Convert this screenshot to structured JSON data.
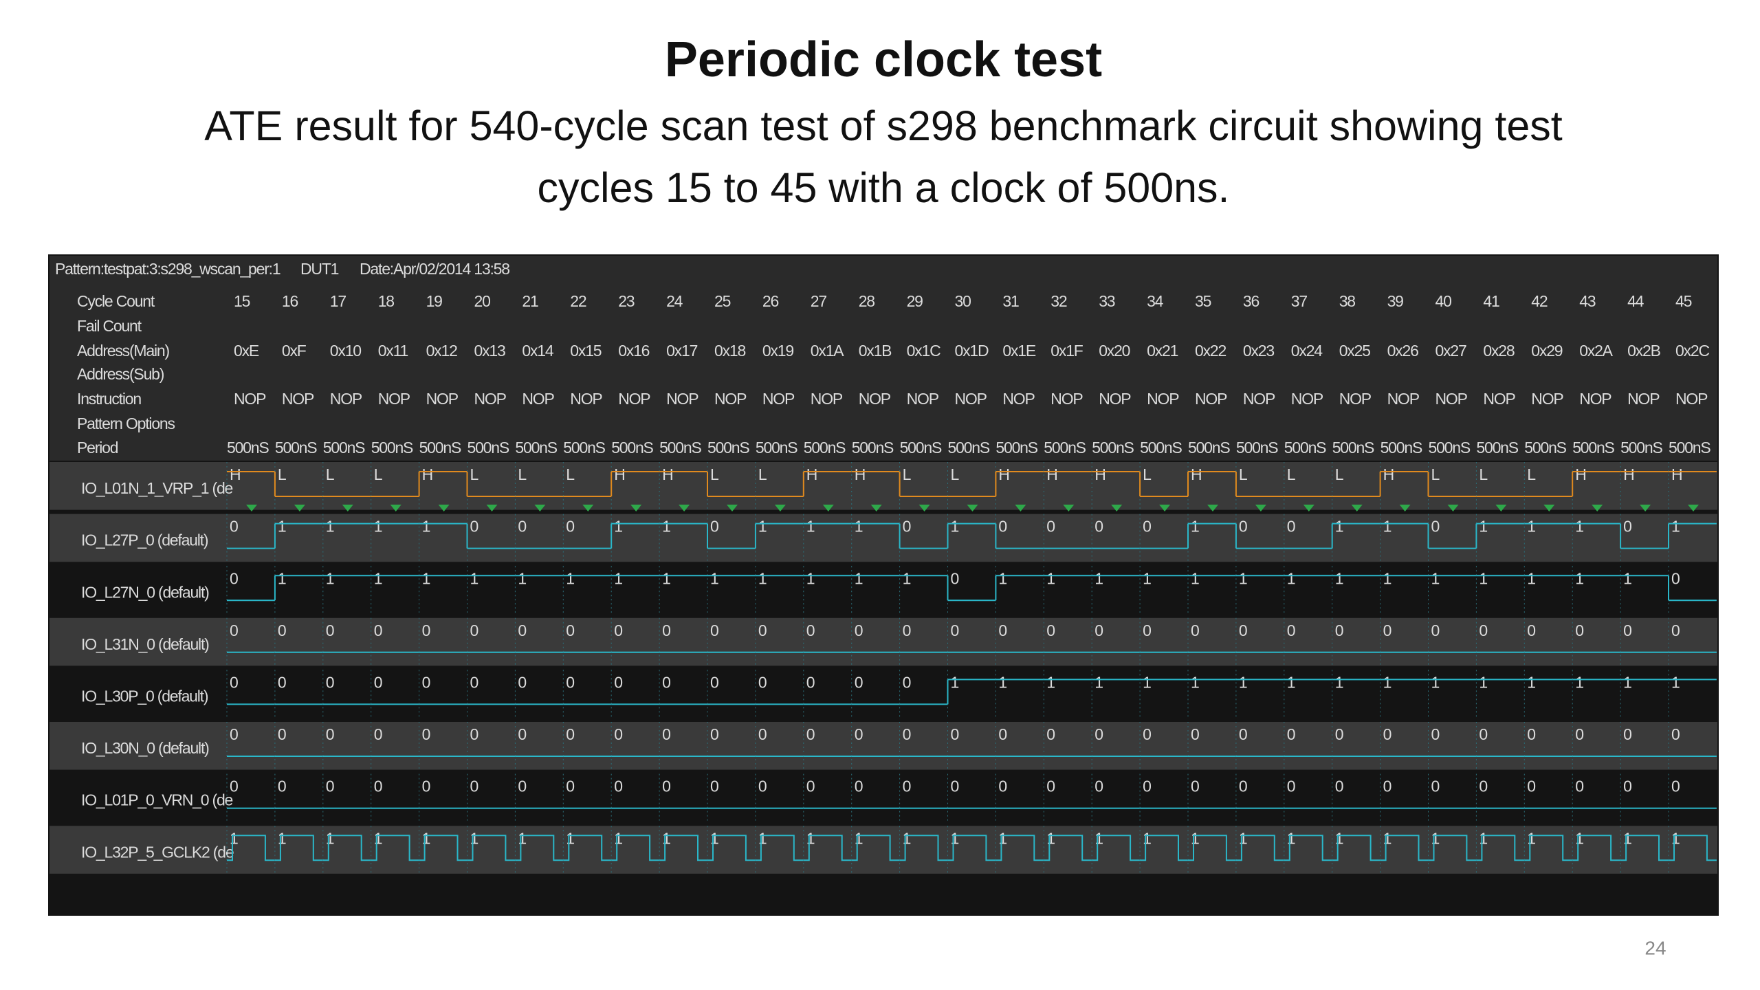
{
  "slide": {
    "title": "Periodic clock test",
    "subtitle_lines": [
      "ATE result for 540-cycle scan test of s298 benchmark circuit showing test",
      "cycles 15 to 45 with a clock of 500ns."
    ],
    "page_number": 24
  },
  "viewer": {
    "header": [
      "Pattern:testpat:3:s298_wscan_per:1",
      "DUT1",
      "Date:Apr/02/2014 13:58"
    ],
    "row_labels": [
      "Cycle Count",
      "Fail Count",
      "Address(Main)",
      "Address(Sub)",
      "Instruction",
      "Pattern Options",
      "Period"
    ],
    "cycle_count": [
      15,
      16,
      17,
      18,
      19,
      20,
      21,
      22,
      23,
      24,
      25,
      26,
      27,
      28,
      29,
      30,
      31,
      32,
      33,
      34,
      35,
      36,
      37,
      38,
      39,
      40,
      41,
      42,
      43,
      44,
      45
    ],
    "address_main": [
      "0xE",
      "0xF",
      "0x10",
      "0x11",
      "0x12",
      "0x13",
      "0x14",
      "0x15",
      "0x16",
      "0x17",
      "0x18",
      "0x19",
      "0x1A",
      "0x1B",
      "0x1C",
      "0x1D",
      "0x1E",
      "0x1F",
      "0x20",
      "0x21",
      "0x22",
      "0x23",
      "0x24",
      "0x25",
      "0x26",
      "0x27",
      "0x28",
      "0x29",
      "0x2A",
      "0x2B",
      "0x2C"
    ],
    "instruction": [
      "NOP",
      "NOP",
      "NOP",
      "NOP",
      "NOP",
      "NOP",
      "NOP",
      "NOP",
      "NOP",
      "NOP",
      "NOP",
      "NOP",
      "NOP",
      "NOP",
      "NOP",
      "NOP",
      "NOP",
      "NOP",
      "NOP",
      "NOP",
      "NOP",
      "NOP",
      "NOP",
      "NOP",
      "NOP",
      "NOP",
      "NOP",
      "NOP",
      "NOP",
      "NOP",
      "NOP"
    ],
    "period": [
      "500nS",
      "500nS",
      "500nS",
      "500nS",
      "500nS",
      "500nS",
      "500nS",
      "500nS",
      "500nS",
      "500nS",
      "500nS",
      "500nS",
      "500nS",
      "500nS",
      "500nS",
      "500nS",
      "500nS",
      "500nS",
      "500nS",
      "500nS",
      "500nS",
      "500nS",
      "500nS",
      "500nS",
      "500nS",
      "500nS",
      "500nS",
      "500nS",
      "500nS",
      "500nS",
      "500nS"
    ],
    "signals": [
      {
        "name": "IO_L01N_1_VRP_1 (de",
        "values": [
          "H",
          "L",
          "L",
          "L",
          "H",
          "L",
          "L",
          "L",
          "H",
          "H",
          "L",
          "L",
          "H",
          "H",
          "L",
          "L",
          "H",
          "H",
          "H",
          "L",
          "H",
          "L",
          "L",
          "L",
          "H",
          "L",
          "L",
          "L",
          "H",
          "H",
          "H"
        ]
      },
      {
        "name": "IO_L27P_0 (default)",
        "values": [
          0,
          1,
          1,
          1,
          1,
          0,
          0,
          0,
          1,
          1,
          0,
          1,
          1,
          1,
          0,
          1,
          0,
          0,
          0,
          0,
          1,
          0,
          0,
          1,
          1,
          0,
          1,
          1,
          1,
          0,
          1
        ]
      },
      {
        "name": "IO_L27N_0 (default)",
        "values": [
          0,
          1,
          1,
          1,
          1,
          1,
          1,
          1,
          1,
          1,
          1,
          1,
          1,
          1,
          1,
          0,
          1,
          1,
          1,
          1,
          1,
          1,
          1,
          1,
          1,
          1,
          1,
          1,
          1,
          1,
          0
        ]
      },
      {
        "name": "IO_L31N_0 (default)",
        "values": [
          0,
          0,
          0,
          0,
          0,
          0,
          0,
          0,
          0,
          0,
          0,
          0,
          0,
          0,
          0,
          0,
          0,
          0,
          0,
          0,
          0,
          0,
          0,
          0,
          0,
          0,
          0,
          0,
          0,
          0,
          0
        ]
      },
      {
        "name": "IO_L30P_0 (default)",
        "values": [
          0,
          0,
          0,
          0,
          0,
          0,
          0,
          0,
          0,
          0,
          0,
          0,
          0,
          0,
          0,
          1,
          1,
          1,
          1,
          1,
          1,
          1,
          1,
          1,
          1,
          1,
          1,
          1,
          1,
          1,
          1
        ]
      },
      {
        "name": "IO_L30N_0 (default)",
        "values": [
          0,
          0,
          0,
          0,
          0,
          0,
          0,
          0,
          0,
          0,
          0,
          0,
          0,
          0,
          0,
          0,
          0,
          0,
          0,
          0,
          0,
          0,
          0,
          0,
          0,
          0,
          0,
          0,
          0,
          0,
          0
        ]
      },
      {
        "name": "IO_L01P_0_VRN_0 (de",
        "values": [
          0,
          0,
          0,
          0,
          0,
          0,
          0,
          0,
          0,
          0,
          0,
          0,
          0,
          0,
          0,
          0,
          0,
          0,
          0,
          0,
          0,
          0,
          0,
          0,
          0,
          0,
          0,
          0,
          0,
          0,
          0
        ]
      },
      {
        "name": "IO_L32P_5_GCLK2 (de",
        "values": [
          1,
          1,
          1,
          1,
          1,
          1,
          1,
          1,
          1,
          1,
          1,
          1,
          1,
          1,
          1,
          1,
          1,
          1,
          1,
          1,
          1,
          1,
          1,
          1,
          1,
          1,
          1,
          1,
          1,
          1,
          1
        ]
      }
    ]
  }
}
